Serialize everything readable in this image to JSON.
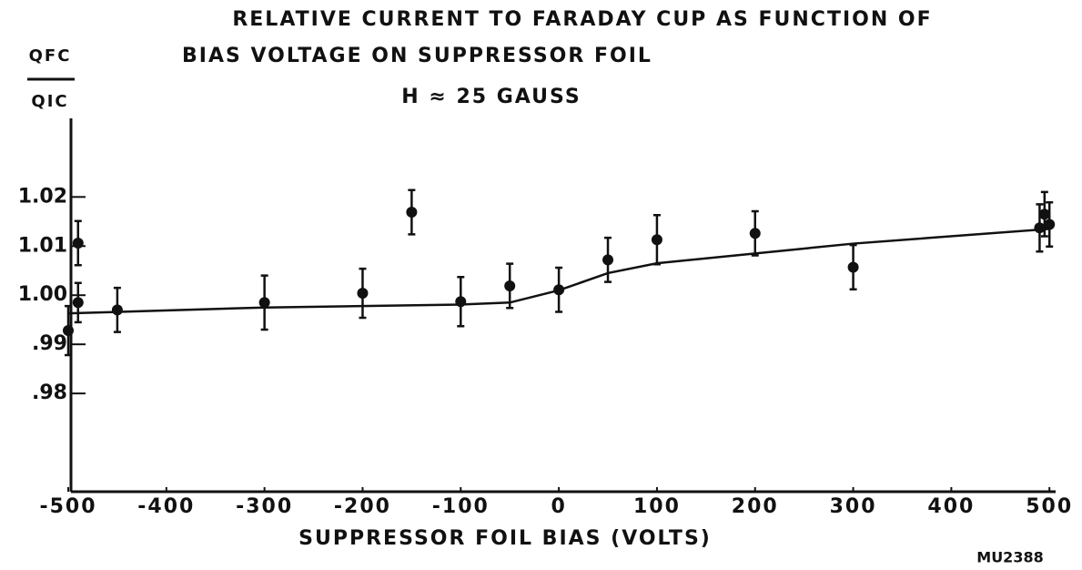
{
  "chart_data": {
    "type": "scatter",
    "title": "RELATIVE CURRENT TO FARADAY CUP AS FUNCTION OF",
    "subtitle": "BIAS VOLTAGE ON SUPPRESSOR FOIL",
    "annotation": "H ≈ 25 GAUSS",
    "ylabel_numerator": "QFC",
    "ylabel_denominator": "QIC",
    "xlabel": "SUPPRESSOR FOIL BIAS (VOLTS)",
    "figure_id": "MU2388",
    "color": "#111111",
    "xlim": [
      -500,
      510
    ],
    "ylim": [
      0.96,
      1.036
    ],
    "xticks": [
      -500,
      -400,
      -300,
      -200,
      -100,
      0,
      100,
      200,
      300,
      400,
      500
    ],
    "yticks": [
      1.02,
      1.01,
      {
        "value": 1.0,
        "label": "1.00"
      },
      {
        "value": 0.99,
        "label": ".99"
      },
      {
        "value": 0.98,
        "label": ".98"
      }
    ],
    "points": {
      "x": [
        -500,
        -490,
        -490,
        -450,
        -300,
        -200,
        -150,
        -100,
        -50,
        0,
        50,
        100,
        200,
        300,
        490,
        495,
        500
      ],
      "values": [
        0.9928,
        1.0106,
        0.9985,
        0.997,
        0.9985,
        1.0004,
        1.0169,
        0.9987,
        1.0019,
        1.0011,
        1.0072,
        1.0113,
        1.0126,
        1.0057,
        1.0137,
        1.0165,
        1.0144
      ],
      "errors": [
        0.005,
        0.0045,
        0.004,
        0.0045,
        0.0055,
        0.005,
        0.0045,
        0.005,
        0.0045,
        0.0045,
        0.0045,
        0.005,
        0.0045,
        0.0045,
        0.0048,
        0.0045,
        0.0045
      ]
    },
    "fit": {
      "x": [
        -500,
        -300,
        -100,
        -50,
        0,
        50,
        100,
        200,
        300,
        500
      ],
      "values": [
        0.9963,
        0.9975,
        0.9981,
        0.9985,
        1.001,
        1.0045,
        1.0065,
        1.0085,
        1.0105,
        1.0135
      ]
    }
  }
}
